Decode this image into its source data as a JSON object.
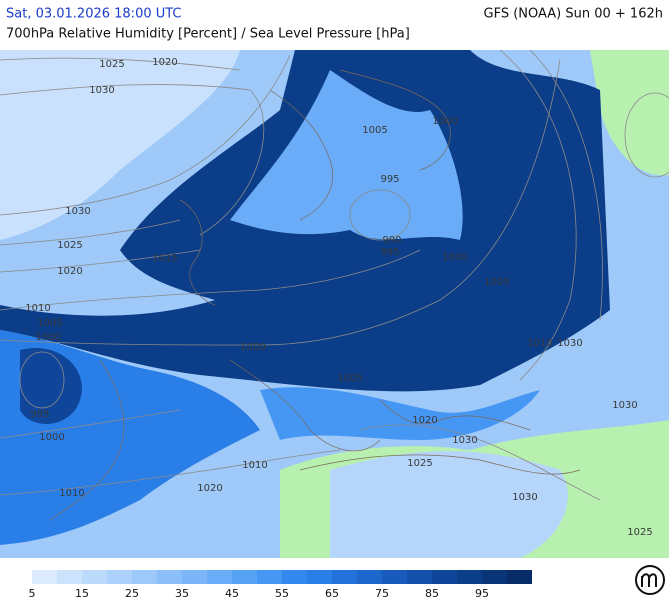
{
  "header": {
    "title_left": "Sat, 03.01.2026 18:00 UTC",
    "title_right": "GFS (NOAA) Sun 00 + 162h",
    "subtitle": "700hPa Relative Humidity [Percent] / Sea Level Pressure [hPa]"
  },
  "isobar_labels": [
    "1025",
    "1020",
    "1030",
    "1030",
    "1025",
    "1020",
    "1015",
    "1010",
    "1005",
    "1000",
    "995",
    "1000",
    "1010",
    "1000",
    "1005",
    "1000",
    "995",
    "990",
    "995",
    "1000",
    "1005",
    "1010",
    "1030",
    "1030",
    "1005",
    "1020",
    "1030",
    "1025",
    "1010",
    "1020",
    "1030",
    "1025"
  ],
  "legend": {
    "colors": [
      "#dcecfe",
      "#cce3fd",
      "#bcdafc",
      "#acd1fb",
      "#9cc8fa",
      "#8cbff9",
      "#7cb6f8",
      "#6aacf7",
      "#58a2f6",
      "#4696f4",
      "#3389f0",
      "#2a7ee8",
      "#2372db",
      "#1d66cc",
      "#185bbd",
      "#1350ab",
      "#0f4699",
      "#0c3d88",
      "#0a3478",
      "#082c68"
    ],
    "labels": [
      5,
      15,
      25,
      35,
      45,
      55,
      65,
      75,
      85,
      95
    ]
  }
}
